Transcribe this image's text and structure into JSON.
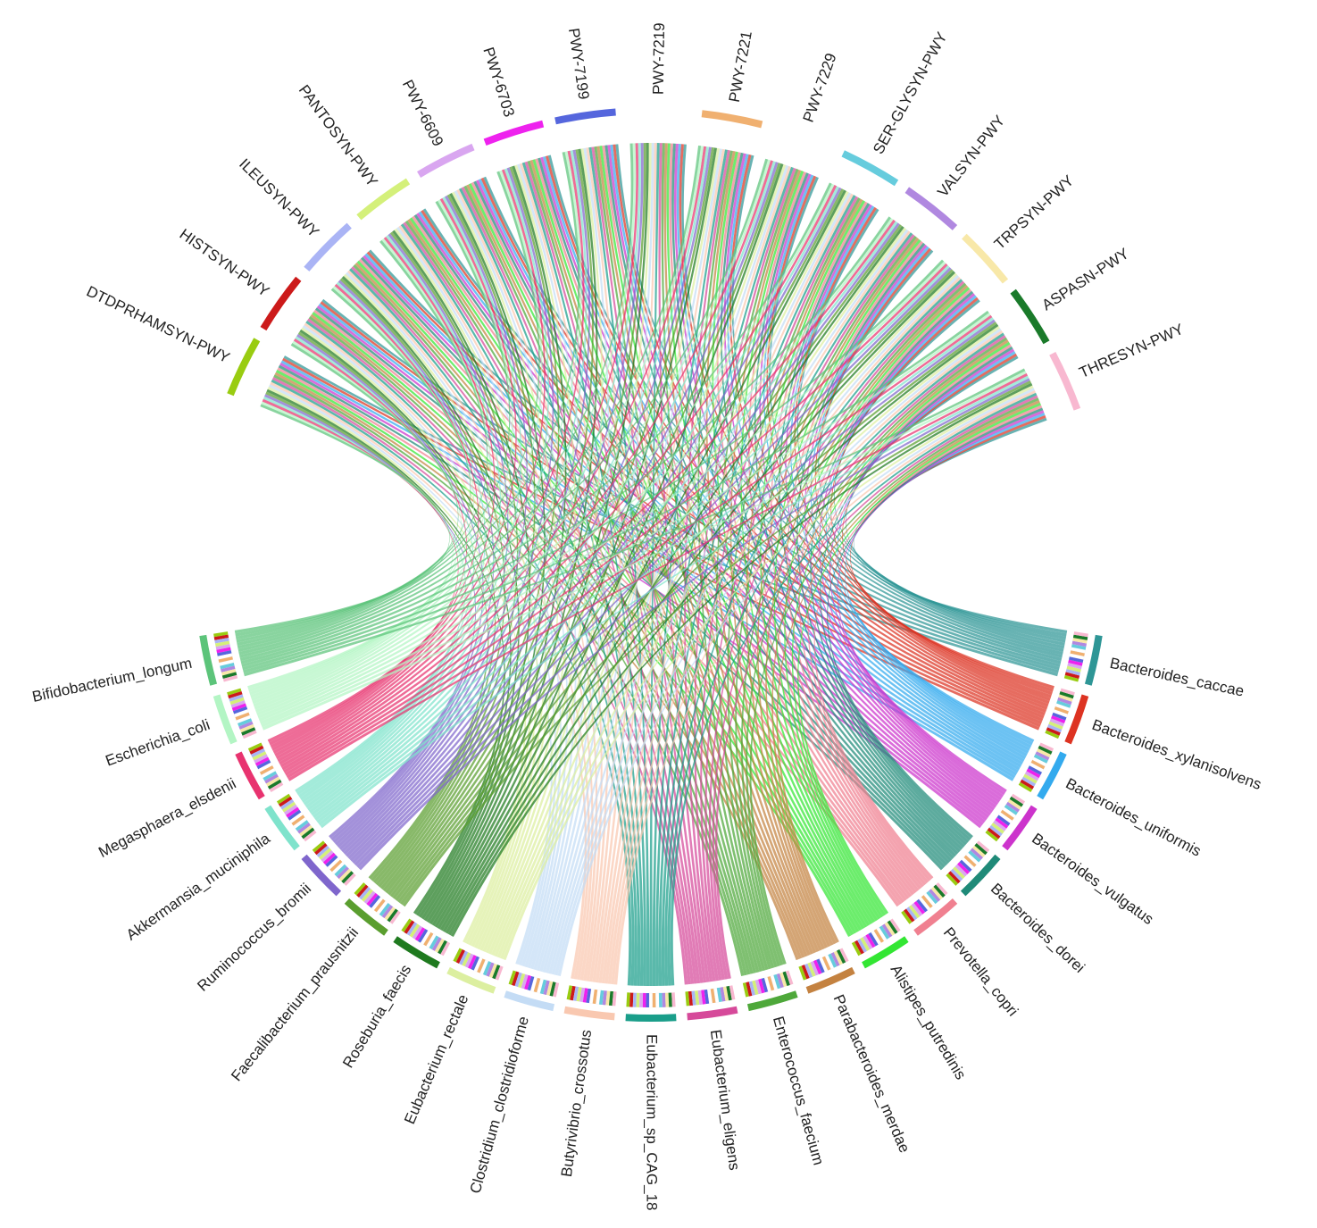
{
  "chart_data": {
    "type": "chord",
    "title": "",
    "pathways": [
      {
        "name": "DTDPRHAMSYN-PWY",
        "color": "#99cc11"
      },
      {
        "name": "HISTSYN-PWY",
        "color": "#cc1a1a"
      },
      {
        "name": "ILEUSYN-PWY",
        "color": "#aab4f5"
      },
      {
        "name": "PANTOSYN-PWY",
        "color": "#d4f07a"
      },
      {
        "name": "PWY-6609",
        "color": "#d9a6f0"
      },
      {
        "name": "PWY-6703",
        "color": "#ee22ee"
      },
      {
        "name": "PWY-7199",
        "color": "#5566dd"
      },
      {
        "name": "PWY-7219",
        "color": "#ffffff"
      },
      {
        "name": "PWY-7221",
        "color": "#f0b070"
      },
      {
        "name": "PWY-7229",
        "color": "#ffffff"
      },
      {
        "name": "SER-GLYSYN-PWY",
        "color": "#66ccdd"
      },
      {
        "name": "VALSYN-PWY",
        "color": "#b088e0"
      },
      {
        "name": "TRPSYN-PWY",
        "color": "#f8e8a8"
      },
      {
        "name": "ASPASN-PWY",
        "color": "#1a7a2a"
      },
      {
        "name": "THRESYN-PWY",
        "color": "#f8b8d0"
      }
    ],
    "species": [
      {
        "name": "Bacteroides_caccae",
        "color": "#2e9696"
      },
      {
        "name": "Bacteroides_xylanisolvens",
        "color": "#dd3322"
      },
      {
        "name": "Bacteroides_uniformis",
        "color": "#33aaee"
      },
      {
        "name": "Bacteroides_vulgatus",
        "color": "#cc33cc"
      },
      {
        "name": "Bacteroides_dorei",
        "color": "#1f8a78"
      },
      {
        "name": "Prevotella_copri",
        "color": "#f08090"
      },
      {
        "name": "Alistipes_putredinis",
        "color": "#33e633"
      },
      {
        "name": "Parabacteroides_merdae",
        "color": "#c48240"
      },
      {
        "name": "Enterococcus_faecium",
        "color": "#4ea83a"
      },
      {
        "name": "Eubacterium_eligens",
        "color": "#d64a9a"
      },
      {
        "name": "Eubacterium_sp_CAG_18",
        "color": "#1a9e8a"
      },
      {
        "name": "Butyrivibrio_crossotus",
        "color": "#f9c8b0"
      },
      {
        "name": "Clostridium_clostridioforme",
        "color": "#c4dcf5"
      },
      {
        "name": "Eubacterium_rectale",
        "color": "#dcefa0"
      },
      {
        "name": "Roseburia_faecis",
        "color": "#1f7a1f"
      },
      {
        "name": "Faecalibacterium_prausnitzii",
        "color": "#5a9e2f"
      },
      {
        "name": "Ruminococcus_bromii",
        "color": "#7f66cc"
      },
      {
        "name": "Akkermansia_muciniphila",
        "color": "#7fe3cc"
      },
      {
        "name": "Megasphaera_elsdenii",
        "color": "#e8336f"
      },
      {
        "name": "Escherichia_coli",
        "color": "#b3f5c4"
      },
      {
        "name": "Bifidobacterium_longum",
        "color": "#5cc47a"
      }
    ],
    "matrix_note_rows": "species",
    "matrix": [
      [
        1,
        1,
        1,
        1,
        1,
        1,
        1,
        1,
        1,
        1,
        1,
        1,
        1,
        1,
        1
      ],
      [
        1,
        1,
        1,
        1,
        1,
        1,
        1,
        1,
        1,
        1,
        1,
        1,
        1,
        1,
        1
      ],
      [
        1,
        1,
        1,
        1,
        1,
        1,
        1,
        1,
        1,
        1,
        1,
        1,
        1,
        1,
        1
      ],
      [
        1,
        1,
        1,
        1,
        1,
        1,
        1,
        1,
        1,
        1,
        1,
        1,
        1,
        1,
        1
      ],
      [
        1,
        1,
        1,
        1,
        1,
        1,
        1,
        1,
        1,
        1,
        1,
        1,
        1,
        1,
        1
      ],
      [
        1,
        1,
        1,
        1,
        1,
        1,
        1,
        1,
        1,
        1,
        1,
        1,
        1,
        1,
        1
      ],
      [
        1,
        1,
        1,
        1,
        1,
        1,
        1,
        1,
        1,
        1,
        1,
        1,
        1,
        1,
        1
      ],
      [
        1,
        1,
        1,
        1,
        1,
        1,
        1,
        1,
        1,
        1,
        1,
        1,
        1,
        1,
        1
      ],
      [
        1,
        1,
        1,
        1,
        1,
        1,
        1,
        1,
        1,
        1,
        1,
        1,
        1,
        1,
        1
      ],
      [
        1,
        1,
        1,
        1,
        1,
        1,
        1,
        1,
        1,
        1,
        1,
        1,
        1,
        1,
        1
      ],
      [
        1,
        1,
        1,
        1,
        1,
        1,
        1,
        1,
        1,
        1,
        1,
        1,
        1,
        1,
        1
      ],
      [
        1,
        1,
        1,
        1,
        1,
        1,
        1,
        1,
        1,
        1,
        1,
        1,
        1,
        1,
        1
      ],
      [
        1,
        1,
        1,
        1,
        1,
        1,
        1,
        1,
        1,
        1,
        1,
        1,
        1,
        1,
        1
      ],
      [
        1,
        1,
        1,
        1,
        1,
        1,
        1,
        1,
        1,
        1,
        1,
        1,
        1,
        1,
        1
      ],
      [
        1,
        1,
        1,
        1,
        1,
        1,
        1,
        1,
        1,
        1,
        1,
        1,
        1,
        1,
        1
      ],
      [
        1,
        1,
        1,
        1,
        1,
        1,
        1,
        1,
        1,
        1,
        1,
        1,
        1,
        1,
        1
      ],
      [
        1,
        1,
        1,
        1,
        1,
        1,
        1,
        1,
        1,
        1,
        1,
        1,
        1,
        1,
        1
      ],
      [
        1,
        1,
        1,
        1,
        1,
        1,
        1,
        1,
        1,
        1,
        1,
        1,
        1,
        1,
        1
      ],
      [
        1,
        1,
        1,
        1,
        1,
        1,
        1,
        1,
        1,
        1,
        1,
        1,
        1,
        1,
        1
      ],
      [
        1,
        1,
        1,
        1,
        1,
        1,
        1,
        1,
        1,
        1,
        1,
        1,
        1,
        1,
        1
      ],
      [
        1,
        1,
        1,
        1,
        1,
        1,
        1,
        1,
        1,
        1,
        1,
        1,
        1,
        1,
        1
      ]
    ]
  }
}
